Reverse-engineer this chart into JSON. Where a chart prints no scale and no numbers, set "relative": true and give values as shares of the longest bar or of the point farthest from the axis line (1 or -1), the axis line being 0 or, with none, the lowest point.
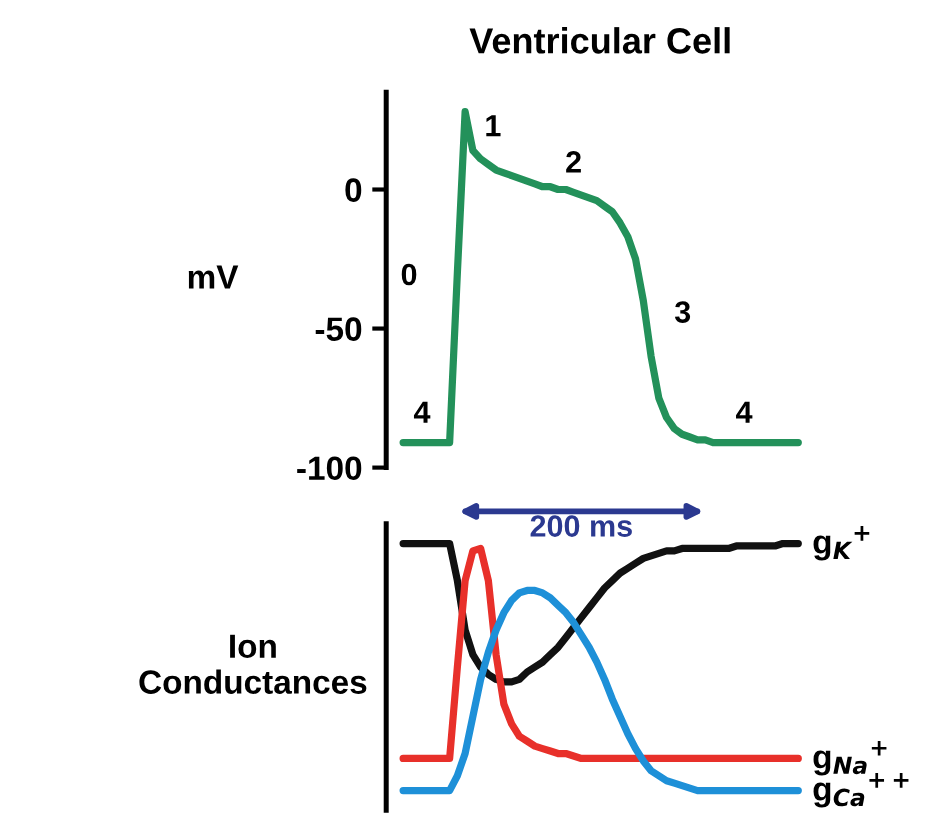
{
  "chart_data": [
    {
      "type": "line",
      "title": "Ventricular Cell",
      "ylabel": "mV",
      "categories": [
        null,
        null,
        null,
        null,
        null,
        null,
        null,
        null,
        null,
        null,
        null,
        null,
        null,
        null,
        null,
        null,
        null,
        null,
        null,
        null,
        null,
        null,
        null,
        null,
        null,
        null,
        null,
        null,
        null,
        null,
        null,
        null,
        null,
        null,
        null,
        null,
        null,
        null,
        null,
        null,
        null,
        null,
        null,
        null,
        null,
        null,
        null,
        null,
        null,
        null,
        null,
        null
      ],
      "series": [
        {
          "color": "#23915a",
          "values": [
            -91,
            -91,
            -91,
            -91,
            -91,
            -91,
            -91,
            -30,
            28,
            14,
            11,
            9,
            7,
            6,
            5,
            4,
            3,
            2,
            1,
            1,
            0,
            0,
            -1,
            -2,
            -3,
            -4,
            -6,
            -8,
            -12,
            -17,
            -25,
            -40,
            -60,
            -75,
            -82,
            -86,
            -88,
            -89,
            -90,
            -90,
            -91,
            -91,
            -91,
            -91,
            -91,
            -91,
            -91,
            -91,
            -91,
            -91,
            -91,
            -91
          ]
        }
      ],
      "ylim": [
        -100,
        35
      ],
      "yticks": [
        0,
        -50,
        -100
      ],
      "tick_labels": "y",
      "grid": false,
      "legend": false,
      "annotations": [
        "0",
        "1",
        "2",
        "3",
        "4",
        "4",
        "200 ms"
      ]
    },
    {
      "type": "line",
      "relative": true,
      "ylabel": "Ion\nConductances",
      "categories": [
        null,
        null,
        null,
        null,
        null,
        null,
        null,
        null,
        null,
        null,
        null,
        null,
        null,
        null,
        null,
        null,
        null,
        null,
        null,
        null,
        null,
        null,
        null,
        null,
        null,
        null,
        null,
        null,
        null,
        null,
        null,
        null,
        null,
        null,
        null,
        null,
        null,
        null,
        null,
        null,
        null,
        null,
        null,
        null,
        null,
        null,
        null,
        null,
        null,
        null,
        null,
        null
      ],
      "series": [
        {
          "name": "g$_{K}$$^{+}$",
          "color": "#111111",
          "values": [
            1.0,
            1.0,
            1.0,
            1.0,
            1.0,
            1.0,
            1.0,
            0.85,
            0.65,
            0.55,
            0.5,
            0.47,
            0.45,
            0.44,
            0.44,
            0.45,
            0.48,
            0.5,
            0.52,
            0.55,
            0.58,
            0.62,
            0.66,
            0.7,
            0.74,
            0.78,
            0.82,
            0.85,
            0.88,
            0.9,
            0.92,
            0.94,
            0.95,
            0.96,
            0.97,
            0.97,
            0.98,
            0.98,
            0.98,
            0.98,
            0.98,
            0.98,
            0.98,
            0.99,
            0.99,
            0.99,
            0.99,
            0.99,
            0.99,
            1.0,
            1.0,
            1.0
          ]
        },
        {
          "name": "g$_{Na}$$^{+}$",
          "color": "#e8302a",
          "values": [
            0.13,
            0.13,
            0.13,
            0.13,
            0.13,
            0.13,
            0.13,
            0.5,
            0.85,
            0.97,
            0.98,
            0.85,
            0.55,
            0.35,
            0.27,
            0.22,
            0.2,
            0.18,
            0.17,
            0.16,
            0.15,
            0.15,
            0.14,
            0.13,
            0.13,
            0.13,
            0.13,
            0.13,
            0.13,
            0.13,
            0.13,
            0.13,
            0.13,
            0.13,
            0.13,
            0.13,
            0.13,
            0.13,
            0.13,
            0.13,
            0.13,
            0.13,
            0.13,
            0.13,
            0.13,
            0.13,
            0.13,
            0.13,
            0.13,
            0.13,
            0.13,
            0.13
          ]
        },
        {
          "name": "g$_{Ca}$$^{++}$",
          "color": "#1e90d8",
          "values": [
            0,
            0,
            0,
            0,
            0,
            0,
            0,
            0.06,
            0.15,
            0.3,
            0.45,
            0.56,
            0.65,
            0.72,
            0.77,
            0.8,
            0.81,
            0.81,
            0.8,
            0.78,
            0.75,
            0.72,
            0.68,
            0.63,
            0.58,
            0.52,
            0.45,
            0.37,
            0.3,
            0.23,
            0.17,
            0.12,
            0.08,
            0.06,
            0.04,
            0.03,
            0.02,
            0.01,
            0,
            0,
            0,
            0,
            0,
            0,
            0,
            0,
            0,
            0,
            0,
            0,
            0,
            0
          ]
        }
      ],
      "tick_labels": false,
      "grid": false,
      "legend": false
    }
  ]
}
